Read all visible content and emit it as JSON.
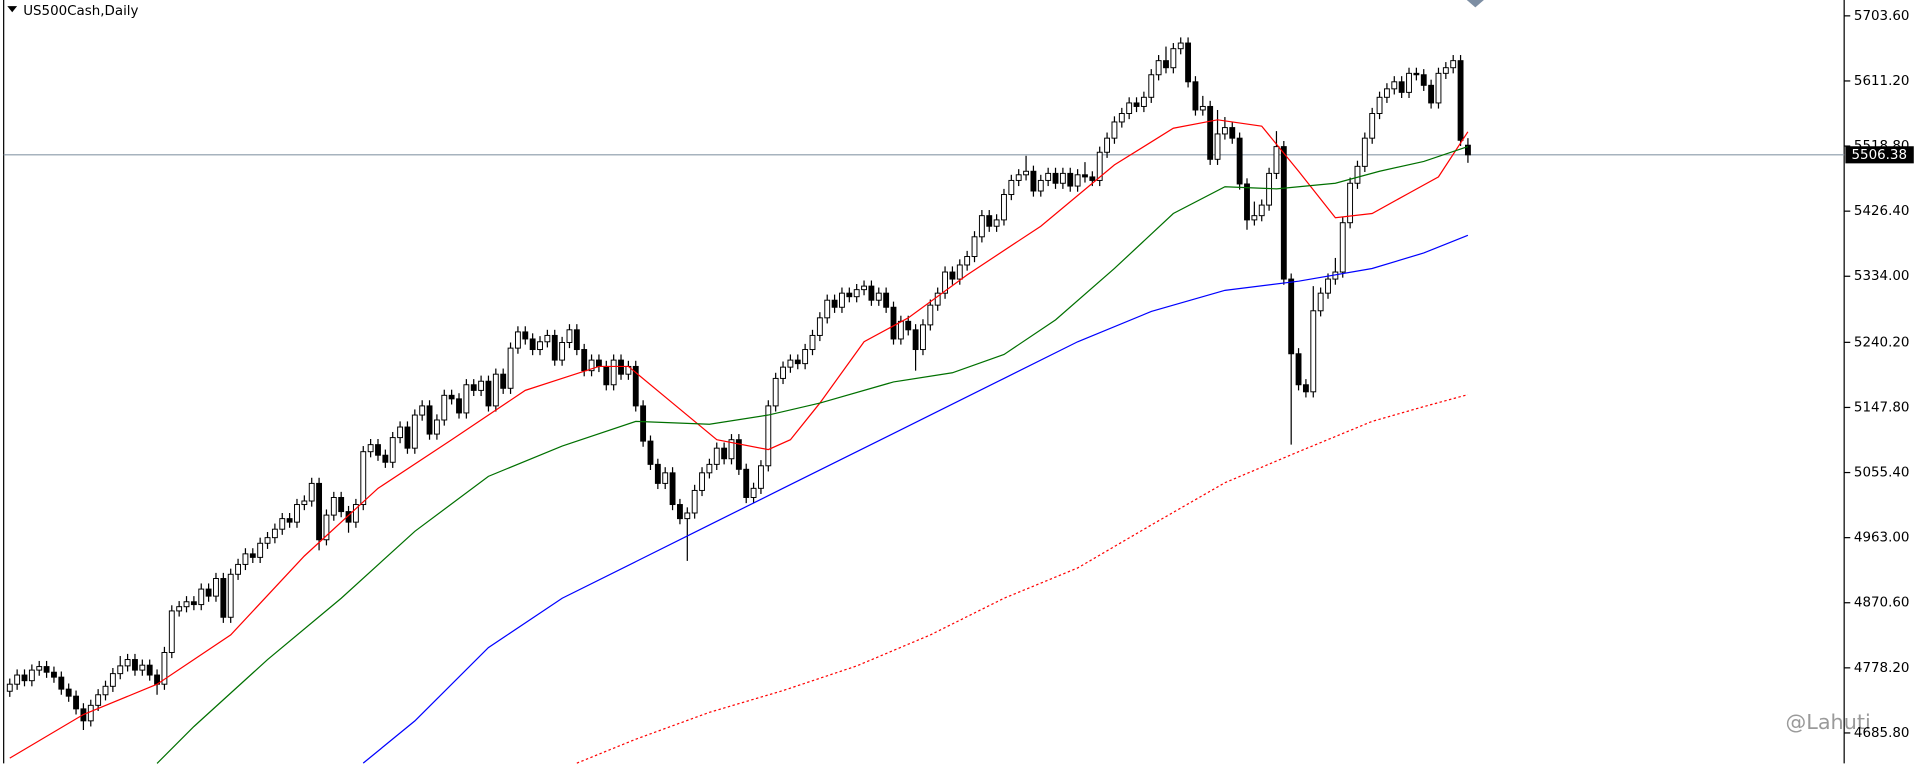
{
  "chart_data": {
    "type": "candlestick",
    "title": "US500Cash,Daily",
    "watermark": "@Lahuti",
    "ylim": [
      4642.6,
      5726.1
    ],
    "yticks": [
      {
        "value": 5703.6,
        "label": "5703.60"
      },
      {
        "value": 5611.2,
        "label": "5611.20"
      },
      {
        "value": 5518.8,
        "label": "5518.80"
      },
      {
        "value": 5426.4,
        "label": "5426.40"
      },
      {
        "value": 5334,
        "label": "5334.00"
      },
      {
        "value": 5240.2,
        "label": "5240.20"
      },
      {
        "value": 5147.8,
        "label": "5147.80"
      },
      {
        "value": 5055.4,
        "label": "5055.40"
      },
      {
        "value": 4963,
        "label": "4963.00"
      },
      {
        "value": 4870.6,
        "label": "4870.60"
      },
      {
        "value": 4778.2,
        "label": "4778.20"
      },
      {
        "value": 4685.8,
        "label": "4685.80"
      }
    ],
    "current_price": 5506.38,
    "up_color": "#ffffff",
    "down_color": "#000000",
    "edge_color": "#000000",
    "price_line_color": "#8a9aa8",
    "ohlc": [
      [
        4745,
        4763,
        4737,
        4755
      ],
      [
        4755,
        4776,
        4747,
        4768
      ],
      [
        4768,
        4776,
        4752,
        4760
      ],
      [
        4760,
        4783,
        4752,
        4775
      ],
      [
        4775,
        4788,
        4767,
        4780
      ],
      [
        4780,
        4788,
        4764,
        4772
      ],
      [
        4772,
        4780,
        4757,
        4765
      ],
      [
        4765,
        4773,
        4740,
        4748
      ],
      [
        4748,
        4756,
        4730,
        4738
      ],
      [
        4738,
        4746,
        4712,
        4720
      ],
      [
        4720,
        4728,
        4690,
        4703
      ],
      [
        4703,
        4733,
        4695,
        4725
      ],
      [
        4725,
        4748,
        4717,
        4740
      ],
      [
        4740,
        4760,
        4732,
        4752
      ],
      [
        4752,
        4778,
        4744,
        4770
      ],
      [
        4770,
        4795,
        4762,
        4781
      ],
      [
        4781,
        4798,
        4773,
        4790
      ],
      [
        4790,
        4798,
        4767,
        4775
      ],
      [
        4775,
        4790,
        4767,
        4782
      ],
      [
        4782,
        4790,
        4760,
        4768
      ],
      [
        4768,
        4776,
        4740,
        4755
      ],
      [
        4755,
        4808,
        4747,
        4800
      ],
      [
        4800,
        4867,
        4792,
        4859
      ],
      [
        4859,
        4873,
        4851,
        4865
      ],
      [
        4865,
        4880,
        4857,
        4872
      ],
      [
        4872,
        4880,
        4860,
        4868
      ],
      [
        4868,
        4898,
        4860,
        4890
      ],
      [
        4890,
        4898,
        4872,
        4880
      ],
      [
        4880,
        4913,
        4872,
        4905
      ],
      [
        4905,
        4913,
        4842,
        4850
      ],
      [
        4850,
        4919,
        4842,
        4911
      ],
      [
        4911,
        4933,
        4903,
        4925
      ],
      [
        4925,
        4948,
        4917,
        4940
      ],
      [
        4940,
        4948,
        4927,
        4935
      ],
      [
        4935,
        4963,
        4927,
        4955
      ],
      [
        4955,
        4971,
        4947,
        4963
      ],
      [
        4963,
        4983,
        4955,
        4975
      ],
      [
        4975,
        4998,
        4967,
        4990
      ],
      [
        4990,
        4998,
        4977,
        4985
      ],
      [
        4985,
        5018,
        4977,
        5010
      ],
      [
        5010,
        5023,
        5002,
        5015
      ],
      [
        5015,
        5048,
        5007,
        5040
      ],
      [
        5040,
        5048,
        4945,
        4960
      ],
      [
        4960,
        5003,
        4952,
        4995
      ],
      [
        4995,
        5028,
        4987,
        5020
      ],
      [
        5020,
        5028,
        4992,
        5000
      ],
      [
        5000,
        5008,
        4970,
        4985
      ],
      [
        4985,
        5018,
        4977,
        5010
      ],
      [
        5010,
        5093,
        5002,
        5085
      ],
      [
        5085,
        5103,
        5077,
        5095
      ],
      [
        5095,
        5103,
        5072,
        5080
      ],
      [
        5080,
        5088,
        5062,
        5070
      ],
      [
        5070,
        5113,
        5062,
        5105
      ],
      [
        5105,
        5128,
        5097,
        5120
      ],
      [
        5120,
        5128,
        5082,
        5090
      ],
      [
        5090,
        5145,
        5082,
        5137
      ],
      [
        5137,
        5158,
        5129,
        5150
      ],
      [
        5150,
        5158,
        5102,
        5110
      ],
      [
        5110,
        5138,
        5102,
        5130
      ],
      [
        5130,
        5173,
        5122,
        5165
      ],
      [
        5165,
        5173,
        5152,
        5160
      ],
      [
        5160,
        5168,
        5132,
        5140
      ],
      [
        5140,
        5188,
        5132,
        5180
      ],
      [
        5180,
        5188,
        5164,
        5172
      ],
      [
        5172,
        5193,
        5164,
        5185
      ],
      [
        5185,
        5193,
        5142,
        5150
      ],
      [
        5150,
        5203,
        5142,
        5195
      ],
      [
        5195,
        5203,
        5167,
        5175
      ],
      [
        5175,
        5240,
        5167,
        5232
      ],
      [
        5232,
        5263,
        5224,
        5255
      ],
      [
        5255,
        5263,
        5237,
        5245
      ],
      [
        5245,
        5253,
        5222,
        5230
      ],
      [
        5230,
        5249,
        5222,
        5241
      ],
      [
        5241,
        5258,
        5233,
        5250
      ],
      [
        5250,
        5258,
        5207,
        5215
      ],
      [
        5215,
        5248,
        5207,
        5240
      ],
      [
        5240,
        5266,
        5232,
        5258
      ],
      [
        5258,
        5266,
        5222,
        5230
      ],
      [
        5230,
        5238,
        5192,
        5200
      ],
      [
        5200,
        5223,
        5192,
        5215
      ],
      [
        5215,
        5223,
        5198,
        5206
      ],
      [
        5206,
        5214,
        5172,
        5180
      ],
      [
        5180,
        5223,
        5172,
        5215
      ],
      [
        5215,
        5223,
        5187,
        5195
      ],
      [
        5195,
        5214,
        5187,
        5206
      ],
      [
        5206,
        5214,
        5142,
        5150
      ],
      [
        5150,
        5158,
        5092,
        5100
      ],
      [
        5100,
        5108,
        5059,
        5067
      ],
      [
        5067,
        5075,
        5032,
        5040
      ],
      [
        5040,
        5063,
        5032,
        5055
      ],
      [
        5055,
        5063,
        5002,
        5010
      ],
      [
        5010,
        5018,
        4982,
        4990
      ],
      [
        4990,
        5006,
        4930,
        4998
      ],
      [
        4998,
        5038,
        4990,
        5030
      ],
      [
        5030,
        5063,
        5022,
        5055
      ],
      [
        5055,
        5075,
        5047,
        5067
      ],
      [
        5067,
        5098,
        5059,
        5090
      ],
      [
        5090,
        5098,
        5067,
        5075
      ],
      [
        5075,
        5110,
        5067,
        5102
      ],
      [
        5102,
        5110,
        5052,
        5060
      ],
      [
        5060,
        5068,
        5012,
        5020
      ],
      [
        5020,
        5041,
        5012,
        5033
      ],
      [
        5033,
        5073,
        5025,
        5065
      ],
      [
        5065,
        5158,
        5057,
        5150
      ],
      [
        5150,
        5197,
        5142,
        5189
      ],
      [
        5189,
        5213,
        5181,
        5205
      ],
      [
        5205,
        5223,
        5197,
        5215
      ],
      [
        5215,
        5223,
        5202,
        5210
      ],
      [
        5210,
        5238,
        5202,
        5230
      ],
      [
        5230,
        5258,
        5222,
        5250
      ],
      [
        5250,
        5283,
        5242,
        5275
      ],
      [
        5275,
        5308,
        5267,
        5300
      ],
      [
        5300,
        5308,
        5282,
        5290
      ],
      [
        5290,
        5318,
        5282,
        5310
      ],
      [
        5310,
        5318,
        5297,
        5305
      ],
      [
        5305,
        5323,
        5297,
        5315
      ],
      [
        5315,
        5328,
        5307,
        5320
      ],
      [
        5320,
        5328,
        5292,
        5300
      ],
      [
        5300,
        5318,
        5292,
        5310
      ],
      [
        5310,
        5318,
        5282,
        5290
      ],
      [
        5290,
        5298,
        5237,
        5245
      ],
      [
        5245,
        5278,
        5237,
        5270
      ],
      [
        5270,
        5278,
        5250,
        5258
      ],
      [
        5258,
        5266,
        5200,
        5230
      ],
      [
        5230,
        5273,
        5222,
        5265
      ],
      [
        5265,
        5301,
        5257,
        5293
      ],
      [
        5293,
        5318,
        5285,
        5310
      ],
      [
        5310,
        5348,
        5302,
        5340
      ],
      [
        5340,
        5348,
        5322,
        5330
      ],
      [
        5330,
        5358,
        5322,
        5350
      ],
      [
        5350,
        5370,
        5342,
        5362
      ],
      [
        5362,
        5398,
        5354,
        5390
      ],
      [
        5390,
        5428,
        5382,
        5420
      ],
      [
        5420,
        5428,
        5397,
        5405
      ],
      [
        5405,
        5422,
        5397,
        5414
      ],
      [
        5414,
        5458,
        5406,
        5450
      ],
      [
        5450,
        5478,
        5442,
        5470
      ],
      [
        5470,
        5486,
        5462,
        5478
      ],
      [
        5478,
        5505,
        5470,
        5483
      ],
      [
        5483,
        5491,
        5447,
        5455
      ],
      [
        5455,
        5478,
        5447,
        5470
      ],
      [
        5470,
        5488,
        5462,
        5480
      ],
      [
        5480,
        5488,
        5458,
        5466
      ],
      [
        5466,
        5488,
        5458,
        5480
      ],
      [
        5480,
        5488,
        5454,
        5462
      ],
      [
        5462,
        5486,
        5454,
        5478
      ],
      [
        5478,
        5496,
        5467,
        5475
      ],
      [
        5475,
        5483,
        5462,
        5470
      ],
      [
        5470,
        5518,
        5462,
        5510
      ],
      [
        5510,
        5538,
        5502,
        5530
      ],
      [
        5530,
        5561,
        5522,
        5553
      ],
      [
        5553,
        5573,
        5545,
        5565
      ],
      [
        5565,
        5588,
        5557,
        5580
      ],
      [
        5580,
        5588,
        5567,
        5575
      ],
      [
        5575,
        5596,
        5567,
        5588
      ],
      [
        5588,
        5628,
        5580,
        5620
      ],
      [
        5620,
        5648,
        5612,
        5640
      ],
      [
        5640,
        5660,
        5622,
        5630
      ],
      [
        5630,
        5665,
        5622,
        5657
      ],
      [
        5657,
        5673,
        5649,
        5665
      ],
      [
        5665,
        5673,
        5602,
        5610
      ],
      [
        5610,
        5618,
        5562,
        5570
      ],
      [
        5570,
        5590,
        5562,
        5575
      ],
      [
        5575,
        5583,
        5492,
        5500
      ],
      [
        5500,
        5570,
        5492,
        5536
      ],
      [
        5536,
        5560,
        5528,
        5545
      ],
      [
        5545,
        5553,
        5522,
        5530
      ],
      [
        5530,
        5538,
        5457,
        5465
      ],
      [
        5465,
        5473,
        5400,
        5414
      ],
      [
        5414,
        5440,
        5406,
        5420
      ],
      [
        5420,
        5443,
        5412,
        5435
      ],
      [
        5435,
        5488,
        5427,
        5480
      ],
      [
        5480,
        5540,
        5472,
        5518
      ],
      [
        5518,
        5526,
        5322,
        5330
      ],
      [
        5330,
        5338,
        5095,
        5224
      ],
      [
        5224,
        5232,
        5172,
        5180
      ],
      [
        5180,
        5188,
        5162,
        5170
      ],
      [
        5170,
        5320,
        5162,
        5285
      ],
      [
        5285,
        5318,
        5277,
        5310
      ],
      [
        5310,
        5338,
        5302,
        5330
      ],
      [
        5330,
        5360,
        5322,
        5340
      ],
      [
        5340,
        5418,
        5332,
        5410
      ],
      [
        5410,
        5474,
        5402,
        5466
      ],
      [
        5466,
        5498,
        5458,
        5490
      ],
      [
        5490,
        5538,
        5482,
        5530
      ],
      [
        5530,
        5573,
        5522,
        5565
      ],
      [
        5565,
        5596,
        5557,
        5588
      ],
      [
        5588,
        5608,
        5580,
        5600
      ],
      [
        5600,
        5618,
        5592,
        5610
      ],
      [
        5610,
        5618,
        5587,
        5595
      ],
      [
        5595,
        5630,
        5587,
        5622
      ],
      [
        5622,
        5630,
        5612,
        5620
      ],
      [
        5620,
        5628,
        5597,
        5605
      ],
      [
        5605,
        5613,
        5572,
        5580
      ],
      [
        5580,
        5630,
        5572,
        5622
      ],
      [
        5622,
        5638,
        5614,
        5630
      ],
      [
        5630,
        5648,
        5622,
        5640
      ],
      [
        5640,
        5648,
        5519,
        5527
      ],
      [
        5520,
        5530,
        5495,
        5506.38
      ]
    ],
    "series": [
      {
        "color": "#ff0000",
        "dashed": false,
        "x": [
          0,
          10,
          20,
          30,
          40,
          50,
          60,
          70,
          80,
          84,
          90,
          96,
          103,
          106,
          110,
          116,
          122,
          130,
          140,
          150,
          158,
          164,
          170,
          175,
          180,
          185,
          190,
          194,
          198
        ],
        "values": [
          4650,
          4712,
          4755,
          4825,
          4937,
          5033,
          5102,
          5172,
          5206,
          5206,
          5154,
          5102,
          5088,
          5102,
          5154,
          5241,
          5275,
          5336,
          5405,
          5492,
          5544,
          5556,
          5547,
          5483,
          5417,
          5423,
          5452,
          5475,
          5539
        ]
      },
      {
        "color": "#007000",
        "dashed": false,
        "x": [
          20,
          25,
          35,
          45,
          55,
          65,
          75,
          85,
          95,
          103,
          110,
          120,
          128,
          135,
          142,
          150,
          158,
          165,
          172,
          180,
          186,
          192,
          198
        ],
        "values": [
          4642.6,
          4695,
          4790,
          4877,
          4972,
          5050,
          5093,
          5128,
          5124,
          5137,
          5154,
          5184,
          5197,
          5223,
          5272,
          5345,
          5423,
          5461,
          5458,
          5466,
          5483,
          5497,
          5518
        ]
      },
      {
        "color": "#0000ff",
        "dashed": false,
        "x": [
          48,
          55,
          65,
          75,
          85,
          95,
          105,
          115,
          125,
          135,
          145,
          155,
          165,
          175,
          185,
          192,
          198
        ],
        "values": [
          4643,
          4703,
          4807,
          4877,
          4929,
          4981,
          5033,
          5085,
          5137,
          5189,
          5241,
          5284,
          5314,
          5327,
          5345,
          5367,
          5392
        ]
      },
      {
        "color": "#ff0000",
        "dashed": true,
        "x": [
          77,
          85,
          95,
          105,
          115,
          125,
          135,
          145,
          155,
          165,
          175,
          185,
          192,
          198
        ],
        "values": [
          4643,
          4677,
          4715,
          4746,
          4781,
          4825,
          4877,
          4920,
          4981,
          5041,
          5085,
          5128,
          5149,
          5166
        ]
      }
    ]
  }
}
